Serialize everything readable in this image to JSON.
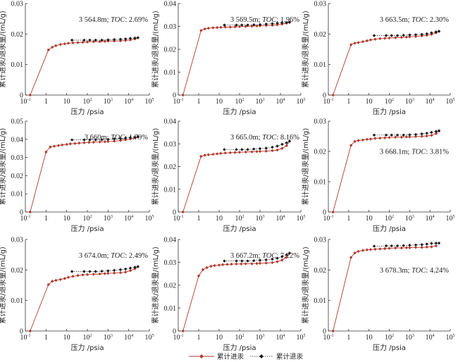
{
  "colors": {
    "intrusion": "#b03a2e",
    "extrusion": "#1a1a1a",
    "axis": "#333333"
  },
  "legend": {
    "items": [
      {
        "label": "累计进汞",
        "series": "intrusion"
      },
      {
        "label": "累计退汞",
        "series": "extrusion"
      }
    ]
  },
  "chart_data": [
    {
      "type": "line",
      "title": "",
      "annotation": "3 564.8m; TOC: 2.69%",
      "xlabel": "压力 /psia",
      "ylabel": "累计进汞/退汞量/(mL/g)",
      "xscale": "log",
      "xlim": [
        0.1,
        100000
      ],
      "x_ticks": [
        "10^-1",
        "1",
        "10",
        "10^2",
        "10^3",
        "10^4",
        "10^5"
      ],
      "ylim": [
        0,
        0.03
      ],
      "y_ticks": [
        "0",
        "0.01",
        "0.02",
        "0.03"
      ],
      "annotation_pos": "top-right",
      "series": [
        {
          "name": "累计进汞",
          "x": [
            0.17,
            1.3,
            2,
            3,
            5,
            8,
            12,
            20,
            35,
            60,
            100,
            200,
            400,
            700,
            1000,
            2000,
            4000,
            7000,
            12000,
            20000,
            28000
          ],
          "y": [
            0,
            0.0148,
            0.0157,
            0.0162,
            0.0166,
            0.0168,
            0.017,
            0.0171,
            0.0172,
            0.0173,
            0.0174,
            0.0175,
            0.0175,
            0.0176,
            0.0177,
            0.0177,
            0.0178,
            0.0179,
            0.0181,
            0.0184,
            0.0188
          ]
        },
        {
          "name": "累计退汞",
          "x": [
            28000,
            20000,
            12000,
            7000,
            4000,
            2000,
            1000,
            500,
            250,
            130,
            70,
            18
          ],
          "y": [
            0.0188,
            0.0187,
            0.0186,
            0.0184,
            0.0183,
            0.0182,
            0.0181,
            0.018,
            0.018,
            0.018,
            0.018,
            0.018
          ]
        }
      ]
    },
    {
      "type": "line",
      "title": "",
      "annotation": "3 569.5m; TOC: 1.96%",
      "xlabel": "压力 /psia",
      "ylabel": "累计进汞/退汞量/(mL/g)",
      "xscale": "log",
      "xlim": [
        0.1,
        100000
      ],
      "x_ticks": [
        "10^-1",
        "1",
        "10",
        "10^2",
        "10^3",
        "10^4",
        "10^5"
      ],
      "ylim": [
        0,
        0.04
      ],
      "y_ticks": [
        "0",
        "0.01",
        "0.02",
        "0.03",
        "0.04"
      ],
      "annotation_pos": "top-right",
      "series": [
        {
          "name": "累计进汞",
          "x": [
            0.17,
            1.3,
            2,
            3,
            5,
            8,
            12,
            20,
            35,
            60,
            100,
            200,
            400,
            700,
            1000,
            2000,
            4000,
            7000,
            12000,
            20000,
            28000
          ],
          "y": [
            0,
            0.0282,
            0.0289,
            0.0292,
            0.0294,
            0.0295,
            0.0296,
            0.0297,
            0.0297,
            0.0298,
            0.0299,
            0.03,
            0.0301,
            0.0302,
            0.0303,
            0.0304,
            0.0305,
            0.0307,
            0.031,
            0.0314,
            0.0318
          ]
        },
        {
          "name": "累计退汞",
          "x": [
            28000,
            20000,
            12000,
            7000,
            4000,
            2000,
            1000,
            500,
            250,
            130,
            70,
            18
          ],
          "y": [
            0.0318,
            0.0317,
            0.0316,
            0.0314,
            0.0312,
            0.031,
            0.0308,
            0.0307,
            0.0306,
            0.0306,
            0.0306,
            0.0306
          ]
        }
      ]
    },
    {
      "type": "line",
      "title": "",
      "annotation": "3 663.5m; TOC: 2.30%",
      "xlabel": "压力 /psia",
      "ylabel": "累计进汞/退汞量/(mL/g)",
      "xscale": "log",
      "xlim": [
        0.1,
        100000
      ],
      "x_ticks": [
        "10^-1",
        "1",
        "10",
        "10^2",
        "10^3",
        "10^4",
        "10^5"
      ],
      "ylim": [
        0,
        0.03
      ],
      "y_ticks": [
        "0",
        "0.01",
        "0.02",
        "0.03"
      ],
      "annotation_pos": "top-right",
      "series": [
        {
          "name": "累计进汞",
          "x": [
            0.17,
            1.3,
            2,
            3,
            5,
            8,
            12,
            20,
            35,
            60,
            100,
            200,
            400,
            700,
            1000,
            2000,
            4000,
            7000,
            12000,
            20000,
            28000
          ],
          "y": [
            0,
            0.0165,
            0.017,
            0.0172,
            0.0175,
            0.0178,
            0.0181,
            0.0183,
            0.0185,
            0.0186,
            0.0187,
            0.0188,
            0.0189,
            0.019,
            0.0191,
            0.0192,
            0.0194,
            0.0196,
            0.0199,
            0.0204,
            0.0209
          ]
        },
        {
          "name": "累计退汞",
          "x": [
            28000,
            20000,
            12000,
            7000,
            4000,
            2000,
            1000,
            500,
            250,
            130,
            70,
            18
          ],
          "y": [
            0.0209,
            0.0207,
            0.0204,
            0.0201,
            0.0199,
            0.0198,
            0.0197,
            0.0196,
            0.0195,
            0.0195,
            0.0195,
            0.0195
          ]
        }
      ]
    },
    {
      "type": "line",
      "title": "",
      "annotation": "3 660m; TOC: 1.79%",
      "xlabel": "压力 /psia",
      "ylabel": "累计进汞/退汞量/(mL/g)",
      "xscale": "log",
      "xlim": [
        0.1,
        100000
      ],
      "x_ticks": [
        "10^-1",
        "1",
        "10",
        "10^2",
        "10^3",
        "10^4",
        "10^5"
      ],
      "ylim": [
        0,
        0.05
      ],
      "y_ticks": [
        "0",
        "0.01",
        "0.02",
        "0.03",
        "0.04",
        "0.05"
      ],
      "annotation_pos": "top-right",
      "series": [
        {
          "name": "累计进汞",
          "x": [
            0.17,
            1,
            1.6,
            2.5,
            4,
            6,
            10,
            15,
            25,
            40,
            70,
            120,
            200,
            400,
            700,
            1000,
            2000,
            4000,
            7000,
            12000,
            20000,
            28000
          ],
          "y": [
            0,
            0.033,
            0.0358,
            0.0362,
            0.0366,
            0.0369,
            0.0372,
            0.0375,
            0.0377,
            0.0379,
            0.0381,
            0.0383,
            0.0384,
            0.0386,
            0.0387,
            0.0388,
            0.039,
            0.0393,
            0.0397,
            0.0402,
            0.0408,
            0.0413
          ]
        },
        {
          "name": "累计退汞",
          "x": [
            28000,
            20000,
            12000,
            7000,
            4000,
            2000,
            1000,
            500,
            250,
            130,
            70,
            18
          ],
          "y": [
            0.0413,
            0.0412,
            0.041,
            0.0407,
            0.0404,
            0.0402,
            0.04,
            0.0398,
            0.0397,
            0.0397,
            0.0397,
            0.0397
          ]
        }
      ]
    },
    {
      "type": "line",
      "title": "",
      "annotation": "3 665.0m; TOC: 8.16%",
      "xlabel": "压力 /psia",
      "ylabel": "累计进汞/退汞量/(mL/g)",
      "xscale": "log",
      "xlim": [
        0.1,
        100000
      ],
      "x_ticks": [
        "10^-1",
        "1",
        "10",
        "10^2",
        "10^3",
        "10^4",
        "10^5"
      ],
      "ylim": [
        0,
        0.04
      ],
      "y_ticks": [
        "0",
        "0.01",
        "0.02",
        "0.03",
        "0.04"
      ],
      "annotation_pos": "top-right",
      "series": [
        {
          "name": "累计进汞",
          "x": [
            0.17,
            1.3,
            2,
            3,
            5,
            8,
            12,
            20,
            35,
            60,
            100,
            200,
            400,
            700,
            1000,
            2000,
            4000,
            7000,
            12000,
            20000,
            28000
          ],
          "y": [
            0,
            0.0245,
            0.025,
            0.0252,
            0.0254,
            0.0256,
            0.0258,
            0.026,
            0.0261,
            0.0262,
            0.0263,
            0.0264,
            0.0265,
            0.0266,
            0.0267,
            0.0268,
            0.027,
            0.0273,
            0.028,
            0.0292,
            0.0312
          ]
        },
        {
          "name": "累计退汞",
          "x": [
            28000,
            20000,
            12000,
            7000,
            4000,
            2000,
            1000,
            500,
            250,
            130,
            70,
            18
          ],
          "y": [
            0.0312,
            0.0305,
            0.0298,
            0.029,
            0.0285,
            0.0281,
            0.0279,
            0.0277,
            0.0275,
            0.0275,
            0.0275,
            0.0275
          ]
        }
      ]
    },
    {
      "type": "line",
      "title": "",
      "annotation": "3 668.1m; TOC: 3.81%",
      "xlabel": "压力 /psia",
      "ylabel": "累计进汞/退汞量/(mL/g)",
      "xscale": "log",
      "xlim": [
        0.1,
        100000
      ],
      "x_ticks": [
        "10^-1",
        "1",
        "10",
        "10^2",
        "10^3",
        "10^4",
        "10^5"
      ],
      "ylim": [
        0,
        0.03
      ],
      "y_ticks": [
        "0",
        "0.01",
        "0.02",
        "0.03"
      ],
      "annotation_pos": "middle-right",
      "series": [
        {
          "name": "累计进汞",
          "x": [
            0.17,
            1.3,
            2,
            3,
            5,
            8,
            12,
            20,
            35,
            60,
            100,
            200,
            400,
            700,
            1000,
            2000,
            4000,
            7000,
            12000,
            20000,
            28000
          ],
          "y": [
            0,
            0.022,
            0.0233,
            0.0236,
            0.0238,
            0.024,
            0.0241,
            0.0243,
            0.0244,
            0.0245,
            0.0246,
            0.0247,
            0.0247,
            0.0248,
            0.0248,
            0.0249,
            0.025,
            0.0251,
            0.0253,
            0.0259,
            0.0268
          ]
        },
        {
          "name": "累计退汞",
          "x": [
            28000,
            20000,
            12000,
            7000,
            4000,
            2000,
            1000,
            500,
            250,
            130,
            70,
            18
          ],
          "y": [
            0.0268,
            0.0266,
            0.0263,
            0.026,
            0.0258,
            0.0256,
            0.0255,
            0.0254,
            0.0254,
            0.0254,
            0.0254,
            0.0254
          ]
        }
      ]
    },
    {
      "type": "line",
      "title": "",
      "annotation": "3 674.0m; TOC: 2.49%",
      "xlabel": "压力 /psia",
      "ylabel": "累计进汞/退汞量/(mL/g)",
      "xscale": "log",
      "xlim": [
        0.1,
        100000
      ],
      "x_ticks": [
        "10^-1",
        "1",
        "10",
        "10^2",
        "10^3",
        "10^4",
        "10^5"
      ],
      "ylim": [
        0,
        0.03
      ],
      "y_ticks": [
        "0",
        "0.01",
        "0.02",
        "0.03"
      ],
      "annotation_pos": "top-right",
      "series": [
        {
          "name": "累计进汞",
          "x": [
            0.17,
            1.3,
            2,
            3,
            5,
            8,
            12,
            20,
            35,
            60,
            100,
            200,
            400,
            700,
            1000,
            2000,
            4000,
            7000,
            12000,
            20000,
            28000
          ],
          "y": [
            0,
            0.0152,
            0.0163,
            0.0166,
            0.0169,
            0.0172,
            0.0176,
            0.0179,
            0.0182,
            0.0184,
            0.0185,
            0.0186,
            0.0187,
            0.0188,
            0.0189,
            0.019,
            0.0191,
            0.0193,
            0.0198,
            0.0204,
            0.0211
          ]
        },
        {
          "name": "累计退汞",
          "x": [
            28000,
            20000,
            12000,
            7000,
            4000,
            2000,
            1000,
            500,
            250,
            130,
            70,
            18
          ],
          "y": [
            0.0211,
            0.0209,
            0.0206,
            0.0203,
            0.0201,
            0.0199,
            0.0197,
            0.0196,
            0.0195,
            0.0195,
            0.0195,
            0.0195
          ]
        }
      ]
    },
    {
      "type": "line",
      "title": "",
      "annotation": "3 667.2m; TOC: 7.22%",
      "xlabel": "压力 /psia",
      "ylabel": "累计进汞/退汞量/(mL/g)",
      "xscale": "log",
      "xlim": [
        0.1,
        100000
      ],
      "x_ticks": [
        "10^-1",
        "1",
        "10",
        "10^2",
        "10^3",
        "10^4",
        "10^5"
      ],
      "ylim": [
        0,
        0.04
      ],
      "y_ticks": [
        "0",
        "0.01",
        "0.02",
        "0.03",
        "0.04"
      ],
      "annotation_pos": "top-right",
      "series": [
        {
          "name": "累计进汞",
          "x": [
            0.17,
            1,
            1.6,
            2.5,
            4,
            6,
            10,
            15,
            25,
            40,
            70,
            120,
            200,
            400,
            700,
            1000,
            2000,
            4000,
            7000,
            12000,
            20000,
            28000
          ],
          "y": [
            0,
            0.0241,
            0.0268,
            0.0277,
            0.0283,
            0.0286,
            0.0288,
            0.029,
            0.0291,
            0.0292,
            0.0293,
            0.0293,
            0.0294,
            0.0294,
            0.0295,
            0.0296,
            0.0297,
            0.0299,
            0.0303,
            0.031,
            0.0322,
            0.034
          ]
        },
        {
          "name": "累计退汞",
          "x": [
            28000,
            20000,
            12000,
            7000,
            4000,
            2000,
            1000,
            500,
            250,
            130,
            70,
            18
          ],
          "y": [
            0.034,
            0.0333,
            0.0325,
            0.0318,
            0.0314,
            0.0311,
            0.0309,
            0.0307,
            0.0306,
            0.0306,
            0.0306,
            0.0306
          ]
        }
      ]
    },
    {
      "type": "line",
      "title": "",
      "annotation": "3 678.3m; TOC: 4.24%",
      "xlabel": "压力 /psia",
      "ylabel": "累计进汞/退汞量/(mL/g)",
      "xscale": "log",
      "xlim": [
        0.1,
        100000
      ],
      "x_ticks": [
        "10^-1",
        "1",
        "10",
        "10^2",
        "10^3",
        "10^4",
        "10^5"
      ],
      "ylim": [
        0,
        0.03
      ],
      "y_ticks": [
        "0",
        "0.01",
        "0.02",
        "0.03"
      ],
      "annotation_pos": "middle-right",
      "series": [
        {
          "name": "累计进汞",
          "x": [
            0.17,
            1.3,
            2,
            3,
            5,
            8,
            12,
            20,
            35,
            60,
            100,
            200,
            400,
            700,
            1000,
            2000,
            4000,
            7000,
            12000,
            20000
          ],
          "y": [
            0,
            0.0241,
            0.0256,
            0.0261,
            0.0264,
            0.0266,
            0.0267,
            0.0268,
            0.0269,
            0.027,
            0.0271,
            0.0272,
            0.0272,
            0.0273,
            0.0273,
            0.0274,
            0.0274,
            0.0275,
            0.0276,
            0.0279
          ]
        },
        {
          "name": "累计退汞",
          "x": [
            28000,
            20000,
            12000,
            7000,
            4000,
            2000,
            1000,
            500,
            250,
            130,
            70,
            18
          ],
          "y": [
            0.0288,
            0.0288,
            0.0287,
            0.0285,
            0.0283,
            0.0282,
            0.0281,
            0.028,
            0.0279,
            0.0279,
            0.0279,
            0.0278
          ]
        }
      ]
    }
  ]
}
